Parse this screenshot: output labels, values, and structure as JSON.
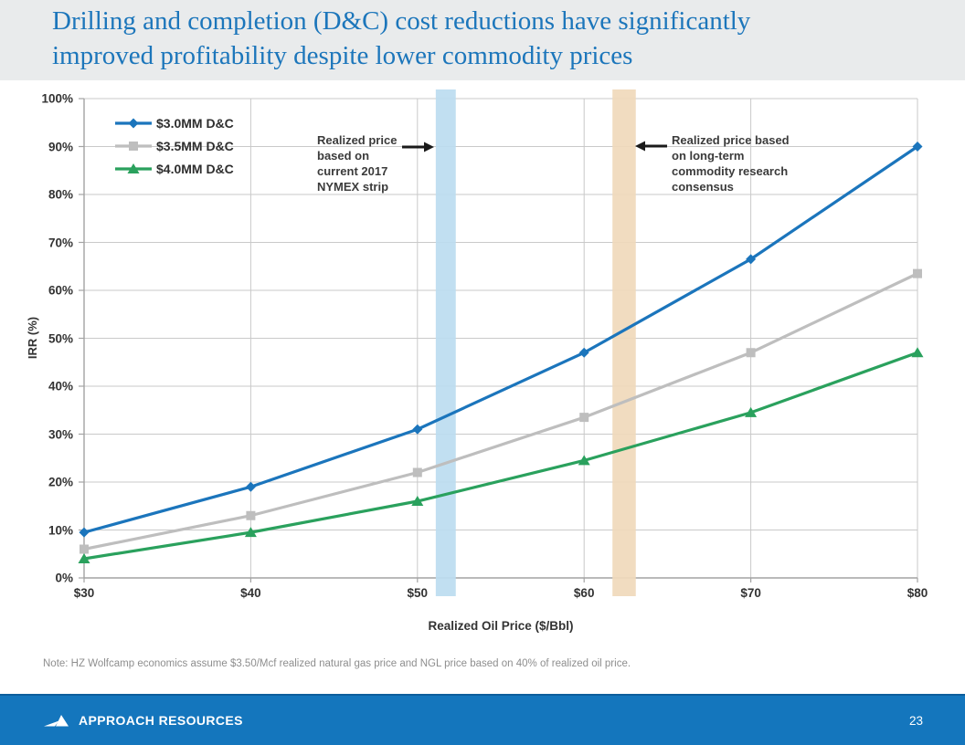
{
  "slide": {
    "title": "Drilling and completion (D&C) cost reductions have significantly\nimproved profitability despite lower commodity prices",
    "note": "Note: HZ Wolfcamp economics assume $3.50/Mcf realized natural gas price and NGL price based on 40% of realized oil price.",
    "footer_brand": "APPROACH RESOURCES",
    "page_number": "23",
    "colors": {
      "title_blue": "#1C76BB",
      "footer_blue": "#1476BD",
      "note_gray": "#8E8E8E"
    }
  },
  "chart_data": {
    "type": "line",
    "xlabel": "Realized Oil Price ($/Bbl)",
    "ylabel": "IRR (%)",
    "xlim": [
      30,
      80
    ],
    "ylim": [
      0,
      100
    ],
    "x": [
      30,
      40,
      50,
      60,
      70,
      80
    ],
    "x_tick_labels": [
      "$30",
      "$40",
      "$50",
      "$60",
      "$70",
      "$80"
    ],
    "y_ticks": [
      0,
      10,
      20,
      30,
      40,
      50,
      60,
      70,
      80,
      90,
      100
    ],
    "y_tick_format": "{v}%",
    "grid": true,
    "grid_color": "#C9C9C9",
    "axis_color": "#A3A3A3",
    "legend_position": "top-left-inside",
    "series": [
      {
        "name": "$3.0MM D&C",
        "marker": "diamond",
        "color": "#1B75BC",
        "values": [
          9.5,
          19,
          31,
          47,
          66.5,
          90
        ]
      },
      {
        "name": "$3.5MM D&C",
        "marker": "square",
        "color": "#BEBEBE",
        "values": [
          6,
          13,
          22,
          33.5,
          47,
          63.5
        ]
      },
      {
        "name": "$4.0MM D&C",
        "marker": "triangle",
        "color": "#2AA15D",
        "values": [
          4,
          9.5,
          16,
          24.5,
          34.5,
          47
        ]
      }
    ],
    "bands": [
      {
        "name": "nymex-strip-band",
        "x_from": 51.1,
        "x_to": 52.3,
        "color": "#BCDCF0"
      },
      {
        "name": "long-term-consensus-band",
        "x_from": 61.7,
        "x_to": 63.1,
        "color": "#F0D9BB"
      }
    ],
    "annotations": [
      {
        "text": "Realized price\nbased on\ncurrent 2017\nNYMEX strip",
        "arrow": "right",
        "points_to": "nymex-strip-band"
      },
      {
        "text": "Realized price based\non long-term\ncommodity research\nconsensus",
        "arrow": "left",
        "points_to": "long-term-consensus-band"
      }
    ]
  }
}
